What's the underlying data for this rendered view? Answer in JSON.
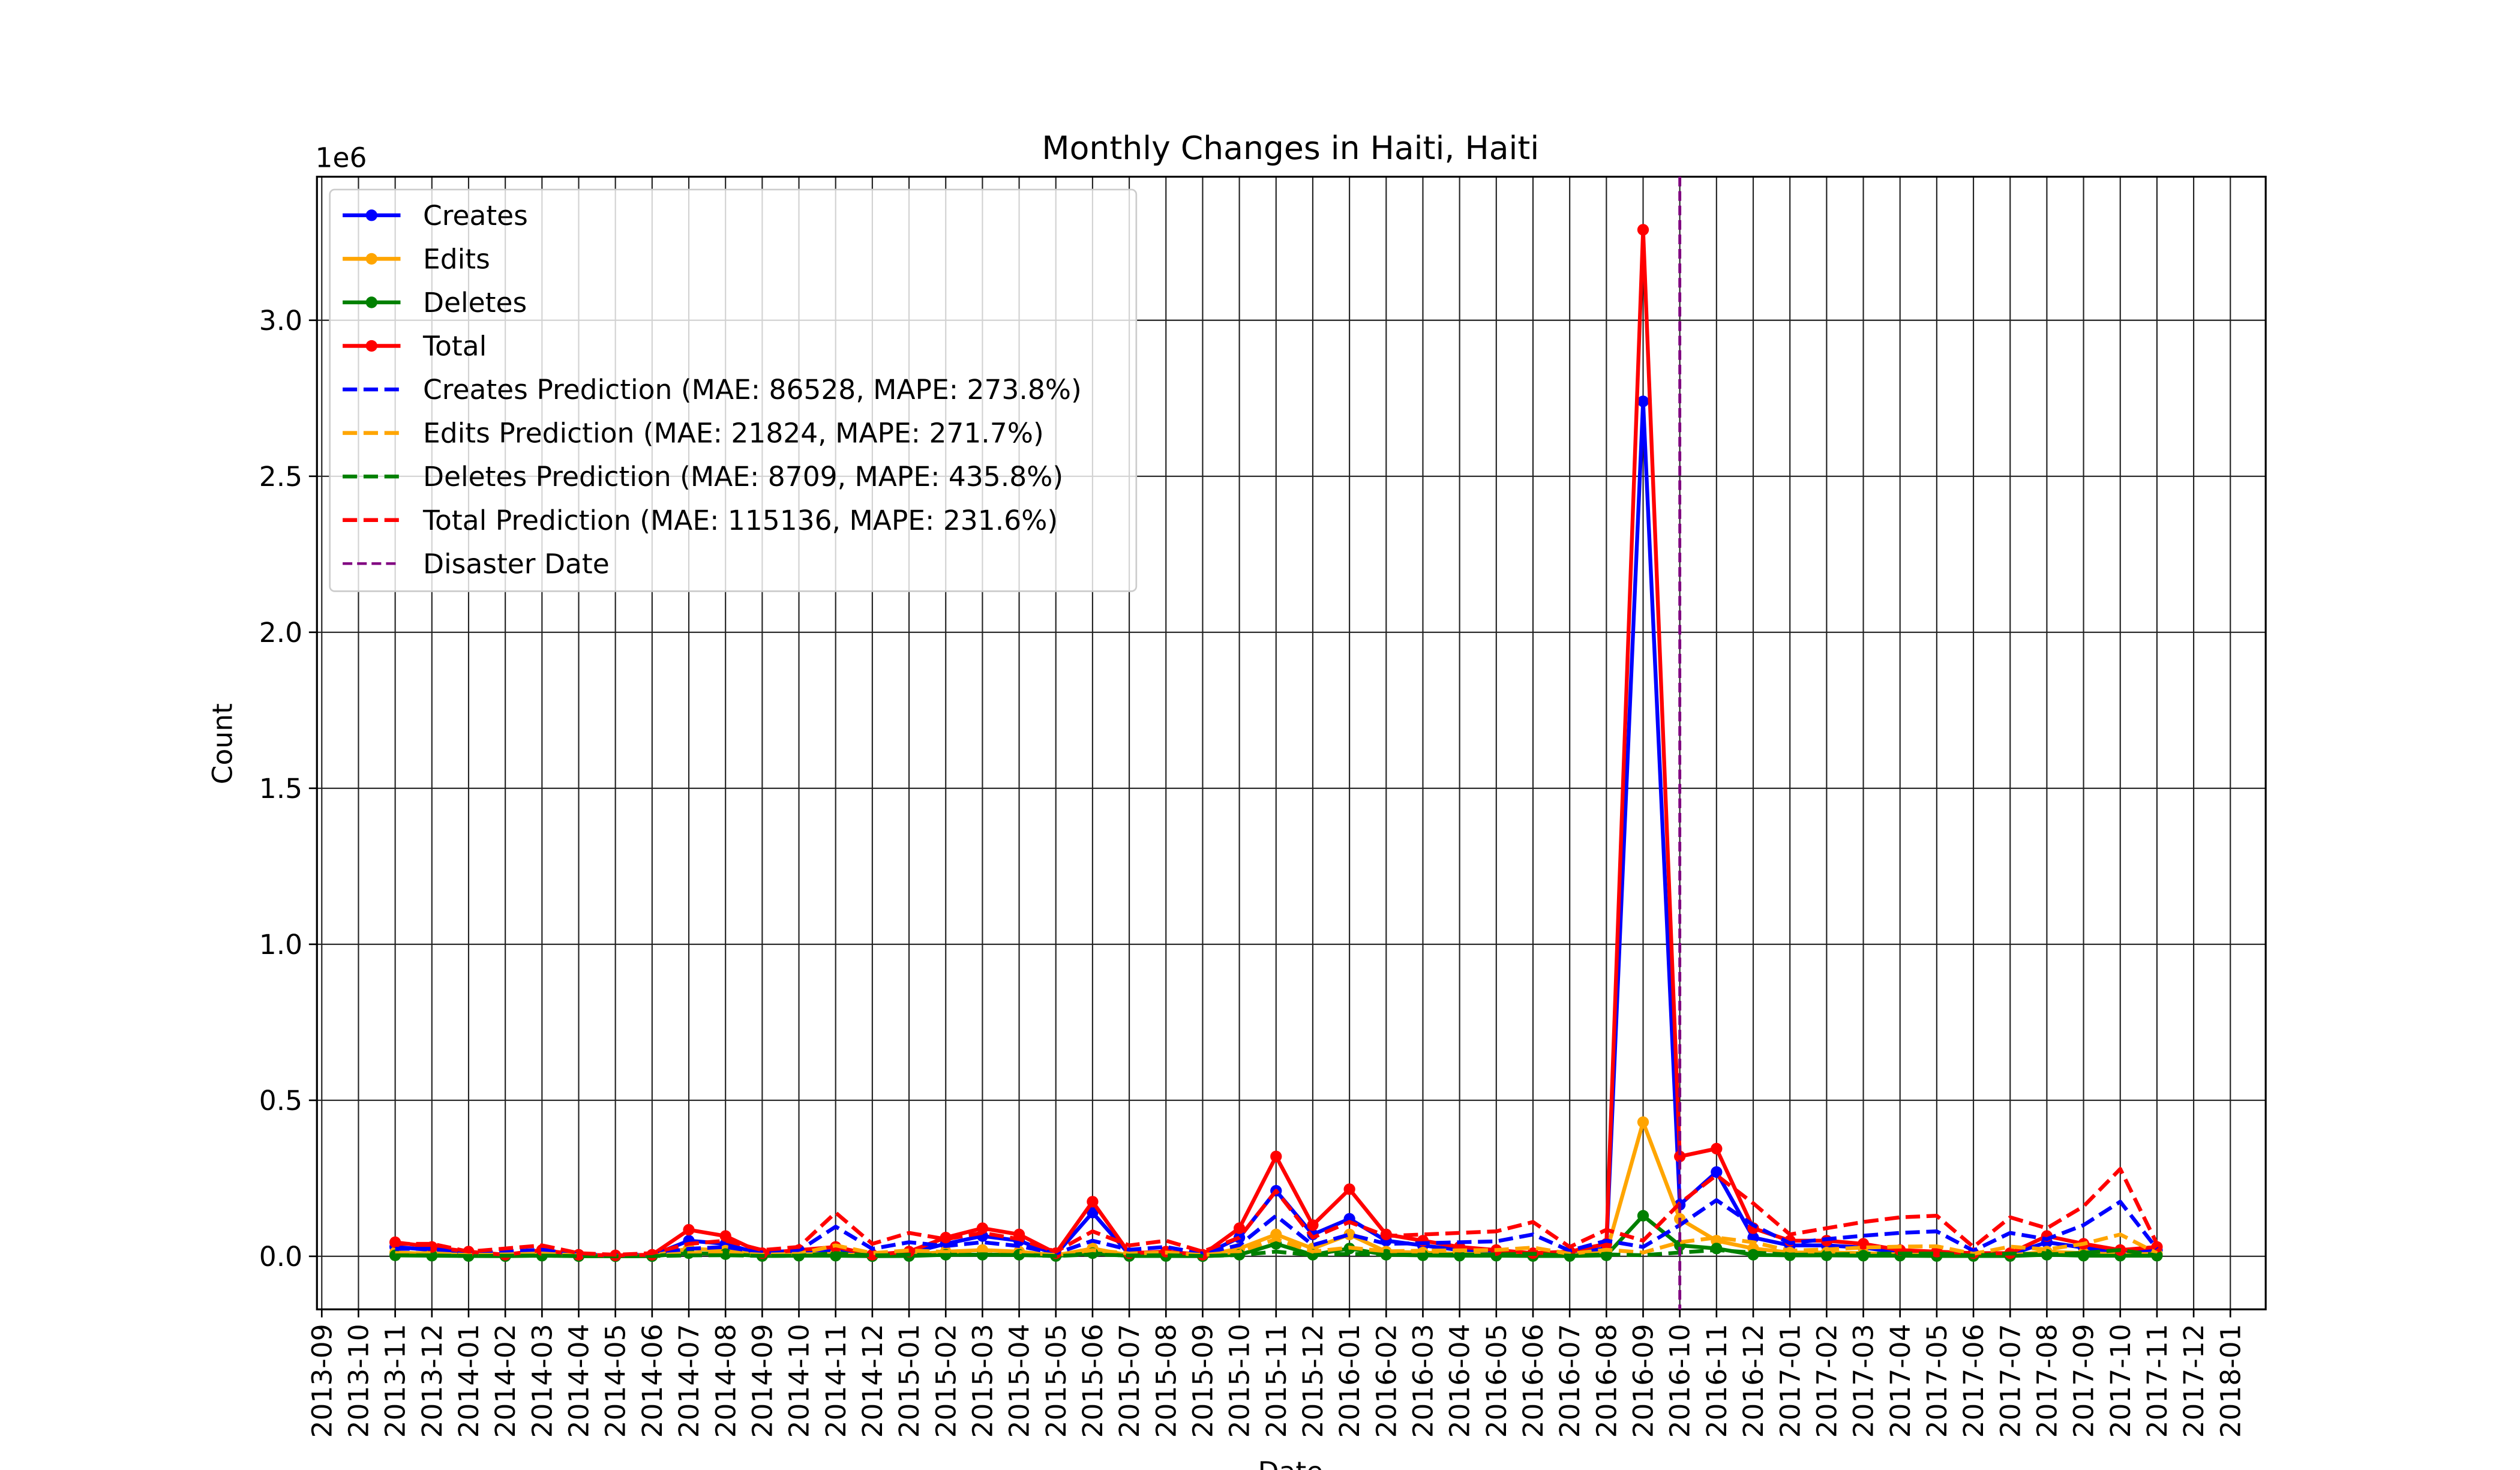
{
  "chart_data": {
    "type": "line",
    "title": "Monthly Changes in Haiti, Haiti",
    "x_label": "Date",
    "y_label": "Count",
    "y_offset_label": "1e6",
    "x": [
      "2013-11",
      "2013-12",
      "2014-01",
      "2014-02",
      "2014-03",
      "2014-04",
      "2014-05",
      "2014-06",
      "2014-07",
      "2014-08",
      "2014-09",
      "2014-10",
      "2014-11",
      "2014-12",
      "2015-01",
      "2015-02",
      "2015-03",
      "2015-04",
      "2015-05",
      "2015-06",
      "2015-07",
      "2015-08",
      "2015-09",
      "2015-10",
      "2015-11",
      "2015-12",
      "2016-01",
      "2016-02",
      "2016-03",
      "2016-04",
      "2016-05",
      "2016-06",
      "2016-07",
      "2016-08",
      "2016-09",
      "2016-10",
      "2016-11",
      "2016-12",
      "2017-01",
      "2017-02",
      "2017-03",
      "2017-04",
      "2017-05",
      "2017-06",
      "2017-07",
      "2017-08",
      "2017-09",
      "2017-10",
      "2017-11"
    ],
    "series": [
      {
        "name": "Creates",
        "color": "#0000ff",
        "dashed": false,
        "markers": true,
        "values": [
          30000,
          20000,
          10000,
          3000,
          12000,
          3000,
          2000,
          3000,
          50000,
          40000,
          6000,
          12000,
          20000,
          3000,
          10000,
          40000,
          65000,
          50000,
          6000,
          140000,
          6000,
          10000,
          3000,
          60000,
          210000,
          70000,
          120000,
          50000,
          35000,
          20000,
          12000,
          6000,
          10000,
          25000,
          2740000,
          165000,
          270000,
          60000,
          35000,
          35000,
          28000,
          12000,
          10000,
          6000,
          6000,
          45000,
          28000,
          12000,
          20000
        ]
      },
      {
        "name": "Edits",
        "color": "#ffa500",
        "dashed": false,
        "markers": true,
        "values": [
          12000,
          8000,
          4000,
          1500,
          6000,
          1500,
          800,
          1500,
          25000,
          18000,
          3000,
          6000,
          8000,
          1500,
          4000,
          15000,
          20000,
          15000,
          3000,
          25000,
          3000,
          4000,
          1500,
          25000,
          70000,
          25000,
          70000,
          15000,
          12000,
          8000,
          6000,
          3000,
          4000,
          12000,
          430000,
          120000,
          50000,
          25000,
          12000,
          12000,
          10000,
          6000,
          4000,
          3000,
          3000,
          15000,
          10000,
          6000,
          8000
        ]
      },
      {
        "name": "Deletes",
        "color": "#008000",
        "dashed": false,
        "markers": true,
        "values": [
          3000,
          2000,
          1000,
          500,
          2000,
          500,
          200,
          500,
          10000,
          7000,
          1000,
          2000,
          2000,
          500,
          1000,
          5000,
          5000,
          5000,
          1000,
          10000,
          1000,
          1000,
          500,
          5000,
          40000,
          5000,
          25000,
          5000,
          3000,
          2000,
          2000,
          1000,
          1000,
          3000,
          130000,
          35000,
          25000,
          5000,
          3000,
          3000,
          2000,
          2000,
          1000,
          1000,
          1000,
          5000,
          2000,
          2000,
          2000
        ]
      },
      {
        "name": "Total",
        "color": "#ff0000",
        "dashed": false,
        "markers": true,
        "values": [
          45000,
          30000,
          15000,
          5000,
          20000,
          5000,
          3000,
          5000,
          85000,
          65000,
          10000,
          20000,
          30000,
          5000,
          15000,
          60000,
          90000,
          70000,
          10000,
          175000,
          10000,
          15000,
          5000,
          90000,
          320000,
          100000,
          215000,
          70000,
          50000,
          30000,
          20000,
          10000,
          15000,
          40000,
          3290000,
          320000,
          345000,
          90000,
          50000,
          50000,
          40000,
          20000,
          15000,
          10000,
          10000,
          65000,
          40000,
          20000,
          30000
        ]
      },
      {
        "name": "Creates Prediction (MAE: 86528, MAPE: 273.8%)",
        "color": "#0000ff",
        "dashed": true,
        "markers": false,
        "values": [
          24000,
          24000,
          9000,
          15000,
          21000,
          6000,
          3000,
          6000,
          24000,
          30000,
          12000,
          18000,
          95000,
          24000,
          45000,
          33000,
          45000,
          33000,
          9000,
          50000,
          21000,
          30000,
          9000,
          36000,
          130000,
          36000,
          70000,
          40000,
          42000,
          45000,
          48000,
          70000,
          18000,
          50000,
          30000,
          100000,
          180000,
          100000,
          42000,
          55000,
          66000,
          75000,
          80000,
          18000,
          75000,
          55000,
          100000,
          175000,
          24000
        ]
      },
      {
        "name": "Edits Prediction (MAE: 21824, MAPE: 271.7%)",
        "color": "#ffa500",
        "dashed": true,
        "markers": false,
        "values": [
          10000,
          10000,
          4000,
          6000,
          9000,
          2500,
          1200,
          2500,
          10000,
          12000,
          5000,
          8000,
          35000,
          10000,
          19000,
          14000,
          19000,
          14000,
          4000,
          20000,
          9000,
          12000,
          4000,
          15000,
          55000,
          15000,
          28000,
          16000,
          18000,
          19000,
          20000,
          28000,
          8000,
          21000,
          12000,
          45000,
          60000,
          45000,
          18000,
          22000,
          28000,
          31000,
          32000,
          8000,
          31000,
          22000,
          40000,
          70000,
          10000
        ]
      },
      {
        "name": "Deletes Prediction (MAE: 8709, MAPE: 435.8%)",
        "color": "#008000",
        "dashed": true,
        "markers": false,
        "values": [
          3000,
          3000,
          1000,
          2000,
          2500,
          700,
          400,
          700,
          3000,
          3500,
          1400,
          2000,
          10000,
          3000,
          5000,
          4000,
          5000,
          4000,
          1000,
          6000,
          2500,
          3500,
          1000,
          4000,
          15000,
          4000,
          8000,
          5000,
          5000,
          5000,
          6000,
          8000,
          2000,
          6000,
          3500,
          12000,
          20000,
          12000,
          5000,
          6000,
          8000,
          9000,
          9000,
          2000,
          9000,
          6000,
          11000,
          20000,
          3000
        ]
      },
      {
        "name": "Total Prediction (MAE: 115136, MAPE: 231.6%)",
        "color": "#ff0000",
        "dashed": true,
        "markers": false,
        "values": [
          40000,
          40000,
          15000,
          25000,
          35000,
          10000,
          5000,
          10000,
          40000,
          50000,
          20000,
          30000,
          140000,
          40000,
          75000,
          55000,
          75000,
          55000,
          15000,
          80000,
          35000,
          50000,
          15000,
          60000,
          210000,
          60000,
          110000,
          65000,
          70000,
          75000,
          80000,
          110000,
          30000,
          85000,
          50000,
          170000,
          260000,
          170000,
          70000,
          90000,
          110000,
          125000,
          130000,
          30000,
          125000,
          90000,
          160000,
          280000,
          40000
        ]
      }
    ],
    "disaster": {
      "name": "Disaster Date",
      "x": "2016-10",
      "color": "#800080"
    },
    "xlim": [
      "2013-09",
      "2018-01"
    ],
    "xticks": [
      "2013-09",
      "2013-10",
      "2013-11",
      "2013-12",
      "2014-01",
      "2014-02",
      "2014-03",
      "2014-04",
      "2014-05",
      "2014-06",
      "2014-07",
      "2014-08",
      "2014-09",
      "2014-10",
      "2014-11",
      "2014-12",
      "2015-01",
      "2015-02",
      "2015-03",
      "2015-04",
      "2015-05",
      "2015-06",
      "2015-07",
      "2015-08",
      "2015-09",
      "2015-10",
      "2015-11",
      "2015-12",
      "2016-01",
      "2016-02",
      "2016-03",
      "2016-04",
      "2016-05",
      "2016-06",
      "2016-07",
      "2016-08",
      "2016-09",
      "2016-10",
      "2016-11",
      "2016-12",
      "2017-01",
      "2017-02",
      "2017-03",
      "2017-04",
      "2017-05",
      "2017-06",
      "2017-07",
      "2017-08",
      "2017-09",
      "2017-10",
      "2017-11",
      "2017-12",
      "2018-01"
    ],
    "ylim": [
      -170000,
      3460000
    ],
    "yticks": [
      {
        "value": 0,
        "label": "0.0"
      },
      {
        "value": 500000,
        "label": "0.5"
      },
      {
        "value": 1000000,
        "label": "1.0"
      },
      {
        "value": 1500000,
        "label": "1.5"
      },
      {
        "value": 2000000,
        "label": "2.0"
      },
      {
        "value": 2500000,
        "label": "2.5"
      },
      {
        "value": 3000000,
        "label": "3.0"
      }
    ],
    "grid": true,
    "legend_position": "upper left"
  }
}
